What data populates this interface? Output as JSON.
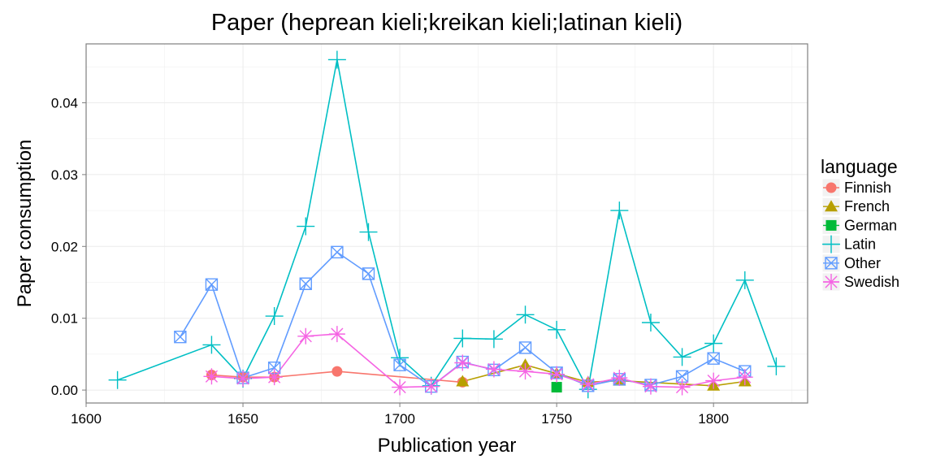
{
  "chart_data": {
    "type": "line",
    "title": "Paper (heprean kieli;kreikan kieli;latinan kieli)",
    "xlabel": "Publication year",
    "ylabel": "Paper consumption",
    "xlim": [
      1600,
      1830
    ],
    "ylim": [
      -0.0018,
      0.0482
    ],
    "xticks": [
      1600,
      1650,
      1700,
      1750,
      1800
    ],
    "xtick_labels": [
      "1600",
      "1650",
      "1700",
      "1750",
      "1800"
    ],
    "yticks": [
      0,
      0.01,
      0.02,
      0.03,
      0.04
    ],
    "ytick_labels": [
      "0.00",
      "0.01",
      "0.02",
      "0.03",
      "0.04"
    ],
    "grid": true,
    "legend": {
      "title": "language",
      "position": "right"
    },
    "series": [
      {
        "name": "Finnish",
        "color": "#F8766D",
        "marker": "circle",
        "x": [
          1640,
          1650,
          1660,
          1680,
          1720
        ],
        "y": [
          0.0021,
          0.0018,
          0.0018,
          0.0026,
          0.0011
        ]
      },
      {
        "name": "French",
        "color": "#B79F00",
        "marker": "triangle",
        "x": [
          1720,
          1740,
          1750,
          1760,
          1770,
          1800,
          1810
        ],
        "y": [
          0.0012,
          0.0035,
          0.0023,
          0.0011,
          0.0013,
          0.0006,
          0.0012
        ]
      },
      {
        "name": "German",
        "color": "#00BA38",
        "marker": "square",
        "x": [
          1750
        ],
        "y": [
          0.0004
        ]
      },
      {
        "name": "Latin",
        "color": "#00BFC4",
        "marker": "plus",
        "x": [
          1610,
          1640,
          1650,
          1660,
          1670,
          1680,
          1690,
          1700,
          1710,
          1720,
          1730,
          1740,
          1750,
          1760,
          1770,
          1780,
          1790,
          1800,
          1810,
          1820
        ],
        "y": [
          0.0014,
          0.0063,
          0.0016,
          0.0103,
          0.0228,
          0.046,
          0.022,
          0.0045,
          0.0006,
          0.0072,
          0.0071,
          0.0105,
          0.0084,
          0.0001,
          0.025,
          0.0094,
          0.0046,
          0.0065,
          0.0153,
          0.0033
        ]
      },
      {
        "name": "Other",
        "color": "#619CFF",
        "marker": "boxx",
        "x": [
          1630,
          1640,
          1650,
          1660,
          1670,
          1680,
          1690,
          1700,
          1710,
          1720,
          1730,
          1740,
          1750,
          1760,
          1770,
          1780,
          1790,
          1800,
          1810
        ],
        "y": [
          0.0074,
          0.0147,
          0.0017,
          0.0031,
          0.0148,
          0.0192,
          0.0162,
          0.0035,
          0.0005,
          0.0039,
          0.0028,
          0.0059,
          0.0024,
          0.0006,
          0.0015,
          0.0007,
          0.0019,
          0.0044,
          0.0026
        ]
      },
      {
        "name": "Swedish",
        "color": "#F564E3",
        "marker": "asterisk",
        "x": [
          1640,
          1650,
          1660,
          1670,
          1680,
          1700,
          1710,
          1720,
          1730,
          1740,
          1750,
          1760,
          1770,
          1780,
          1790,
          1800,
          1810
        ],
        "y": [
          0.0019,
          0.0016,
          0.0018,
          0.0075,
          0.0078,
          0.0004,
          0.0005,
          0.0038,
          0.0029,
          0.0026,
          0.0022,
          0.0008,
          0.0017,
          0.0005,
          0.0004,
          0.0013,
          0.0018
        ]
      }
    ]
  }
}
